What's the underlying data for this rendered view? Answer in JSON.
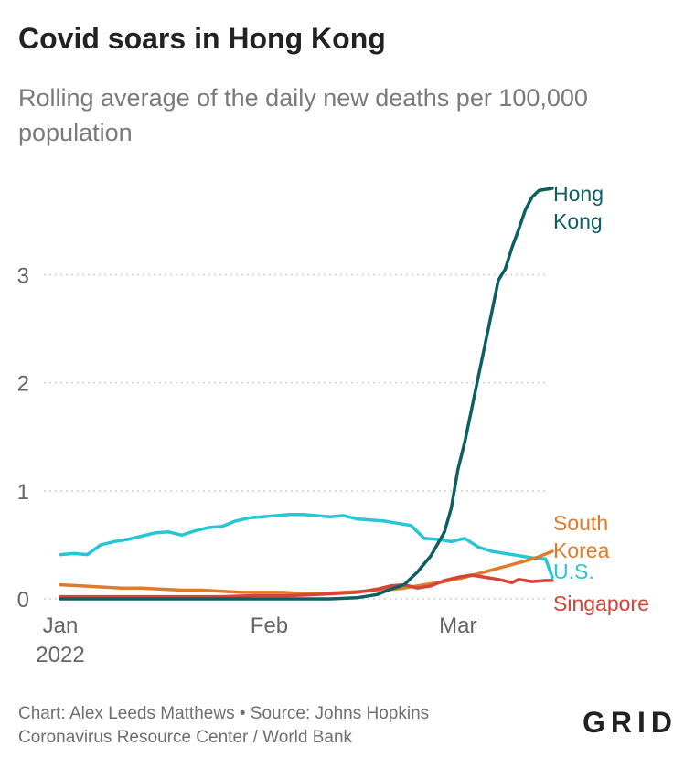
{
  "title": "Covid soars in Hong Kong",
  "subtitle": "Rolling average of the daily new deaths per 100,000 population",
  "footer": {
    "line1": "Chart: Alex Leeds Matthews • Source: Johns Hopkins",
    "line2": "Coronavirus Resource Center / World Bank"
  },
  "logo": "GRID",
  "colors": {
    "hong_kong": "#0e5f63",
    "south_korea": "#e07b29",
    "us": "#26c6d6",
    "singapore": "#d64338",
    "grid": "#cfcfcf",
    "tick_text": "#666666"
  },
  "chart_data": {
    "type": "line",
    "title": "Covid soars in Hong Kong",
    "subtitle": "Rolling average of the daily new deaths per 100,000 population",
    "xlabel": "",
    "ylabel": "",
    "x_range": [
      "2022-01-01",
      "2022-03-15"
    ],
    "ylim": [
      0,
      3.8
    ],
    "y_ticks": [
      0,
      1,
      2,
      3
    ],
    "x_ticks": [
      {
        "date": "2022-01-01",
        "label": "Jan",
        "sublabel": "2022"
      },
      {
        "date": "2022-02-01",
        "label": "Feb",
        "sublabel": ""
      },
      {
        "date": "2022-03-01",
        "label": "Mar",
        "sublabel": ""
      }
    ],
    "grid": "horizontal-dotted",
    "legend": "direct-labels-right",
    "series": [
      {
        "name": "U.S.",
        "label_lines": [
          "U.S."
        ],
        "color_key": "us",
        "points": [
          [
            "2022-01-01",
            0.41
          ],
          [
            "2022-01-03",
            0.42
          ],
          [
            "2022-01-05",
            0.41
          ],
          [
            "2022-01-07",
            0.5
          ],
          [
            "2022-01-09",
            0.53
          ],
          [
            "2022-01-11",
            0.55
          ],
          [
            "2022-01-13",
            0.58
          ],
          [
            "2022-01-15",
            0.61
          ],
          [
            "2022-01-17",
            0.62
          ],
          [
            "2022-01-19",
            0.59
          ],
          [
            "2022-01-21",
            0.63
          ],
          [
            "2022-01-23",
            0.66
          ],
          [
            "2022-01-25",
            0.67
          ],
          [
            "2022-01-27",
            0.72
          ],
          [
            "2022-01-29",
            0.75
          ],
          [
            "2022-01-31",
            0.76
          ],
          [
            "2022-02-02",
            0.77
          ],
          [
            "2022-02-04",
            0.78
          ],
          [
            "2022-02-06",
            0.78
          ],
          [
            "2022-02-08",
            0.77
          ],
          [
            "2022-02-10",
            0.76
          ],
          [
            "2022-02-12",
            0.77
          ],
          [
            "2022-02-14",
            0.74
          ],
          [
            "2022-02-16",
            0.73
          ],
          [
            "2022-02-18",
            0.72
          ],
          [
            "2022-02-20",
            0.7
          ],
          [
            "2022-02-22",
            0.68
          ],
          [
            "2022-02-24",
            0.56
          ],
          [
            "2022-02-26",
            0.55
          ],
          [
            "2022-02-28",
            0.53
          ],
          [
            "2022-03-02",
            0.56
          ],
          [
            "2022-03-04",
            0.48
          ],
          [
            "2022-03-06",
            0.44
          ],
          [
            "2022-03-08",
            0.42
          ],
          [
            "2022-03-10",
            0.4
          ],
          [
            "2022-03-12",
            0.38
          ],
          [
            "2022-03-14",
            0.37
          ],
          [
            "2022-03-15",
            0.2
          ]
        ]
      },
      {
        "name": "South Korea",
        "label_lines": [
          "South",
          "Korea"
        ],
        "color_key": "south_korea",
        "points": [
          [
            "2022-01-01",
            0.13
          ],
          [
            "2022-01-04",
            0.12
          ],
          [
            "2022-01-07",
            0.11
          ],
          [
            "2022-01-10",
            0.1
          ],
          [
            "2022-01-13",
            0.1
          ],
          [
            "2022-01-16",
            0.09
          ],
          [
            "2022-01-19",
            0.08
          ],
          [
            "2022-01-22",
            0.08
          ],
          [
            "2022-01-25",
            0.07
          ],
          [
            "2022-01-28",
            0.06
          ],
          [
            "2022-01-31",
            0.06
          ],
          [
            "2022-02-03",
            0.06
          ],
          [
            "2022-02-06",
            0.05
          ],
          [
            "2022-02-09",
            0.05
          ],
          [
            "2022-02-12",
            0.06
          ],
          [
            "2022-02-15",
            0.07
          ],
          [
            "2022-02-18",
            0.08
          ],
          [
            "2022-02-21",
            0.1
          ],
          [
            "2022-02-24",
            0.13
          ],
          [
            "2022-02-27",
            0.16
          ],
          [
            "2022-03-02",
            0.2
          ],
          [
            "2022-03-05",
            0.25
          ],
          [
            "2022-03-08",
            0.3
          ],
          [
            "2022-03-11",
            0.35
          ],
          [
            "2022-03-13",
            0.39
          ],
          [
            "2022-03-15",
            0.44
          ]
        ]
      },
      {
        "name": "Singapore",
        "label_lines": [
          "Singapore"
        ],
        "color_key": "singapore",
        "points": [
          [
            "2022-01-01",
            0.02
          ],
          [
            "2022-01-05",
            0.02
          ],
          [
            "2022-01-10",
            0.02
          ],
          [
            "2022-01-15",
            0.02
          ],
          [
            "2022-01-20",
            0.02
          ],
          [
            "2022-01-25",
            0.02
          ],
          [
            "2022-01-30",
            0.03
          ],
          [
            "2022-02-04",
            0.03
          ],
          [
            "2022-02-08",
            0.04
          ],
          [
            "2022-02-11",
            0.05
          ],
          [
            "2022-02-14",
            0.06
          ],
          [
            "2022-02-17",
            0.09
          ],
          [
            "2022-02-19",
            0.12
          ],
          [
            "2022-02-21",
            0.13
          ],
          [
            "2022-02-23",
            0.1
          ],
          [
            "2022-02-25",
            0.12
          ],
          [
            "2022-02-27",
            0.17
          ],
          [
            "2022-03-01",
            0.2
          ],
          [
            "2022-03-03",
            0.22
          ],
          [
            "2022-03-05",
            0.2
          ],
          [
            "2022-03-07",
            0.18
          ],
          [
            "2022-03-09",
            0.15
          ],
          [
            "2022-03-10",
            0.18
          ],
          [
            "2022-03-12",
            0.16
          ],
          [
            "2022-03-14",
            0.17
          ],
          [
            "2022-03-15",
            0.17
          ]
        ]
      },
      {
        "name": "Hong Kong",
        "label_lines": [
          "Hong",
          "Kong"
        ],
        "color_key": "hong_kong",
        "points": [
          [
            "2022-01-01",
            0.0
          ],
          [
            "2022-01-15",
            0.0
          ],
          [
            "2022-02-01",
            0.0
          ],
          [
            "2022-02-10",
            0.0
          ],
          [
            "2022-02-14",
            0.01
          ],
          [
            "2022-02-17",
            0.04
          ],
          [
            "2022-02-19",
            0.09
          ],
          [
            "2022-02-21",
            0.13
          ],
          [
            "2022-02-23",
            0.25
          ],
          [
            "2022-02-25",
            0.4
          ],
          [
            "2022-02-27",
            0.62
          ],
          [
            "2022-02-28",
            0.84
          ],
          [
            "2022-03-01",
            1.2
          ],
          [
            "2022-03-02",
            1.45
          ],
          [
            "2022-03-03",
            1.75
          ],
          [
            "2022-03-04",
            2.05
          ],
          [
            "2022-03-05",
            2.35
          ],
          [
            "2022-03-06",
            2.65
          ],
          [
            "2022-03-07",
            2.95
          ],
          [
            "2022-03-08",
            3.05
          ],
          [
            "2022-03-09",
            3.25
          ],
          [
            "2022-03-10",
            3.42
          ],
          [
            "2022-03-11",
            3.6
          ],
          [
            "2022-03-12",
            3.72
          ],
          [
            "2022-03-13",
            3.78
          ],
          [
            "2022-03-15",
            3.8
          ]
        ]
      }
    ]
  }
}
